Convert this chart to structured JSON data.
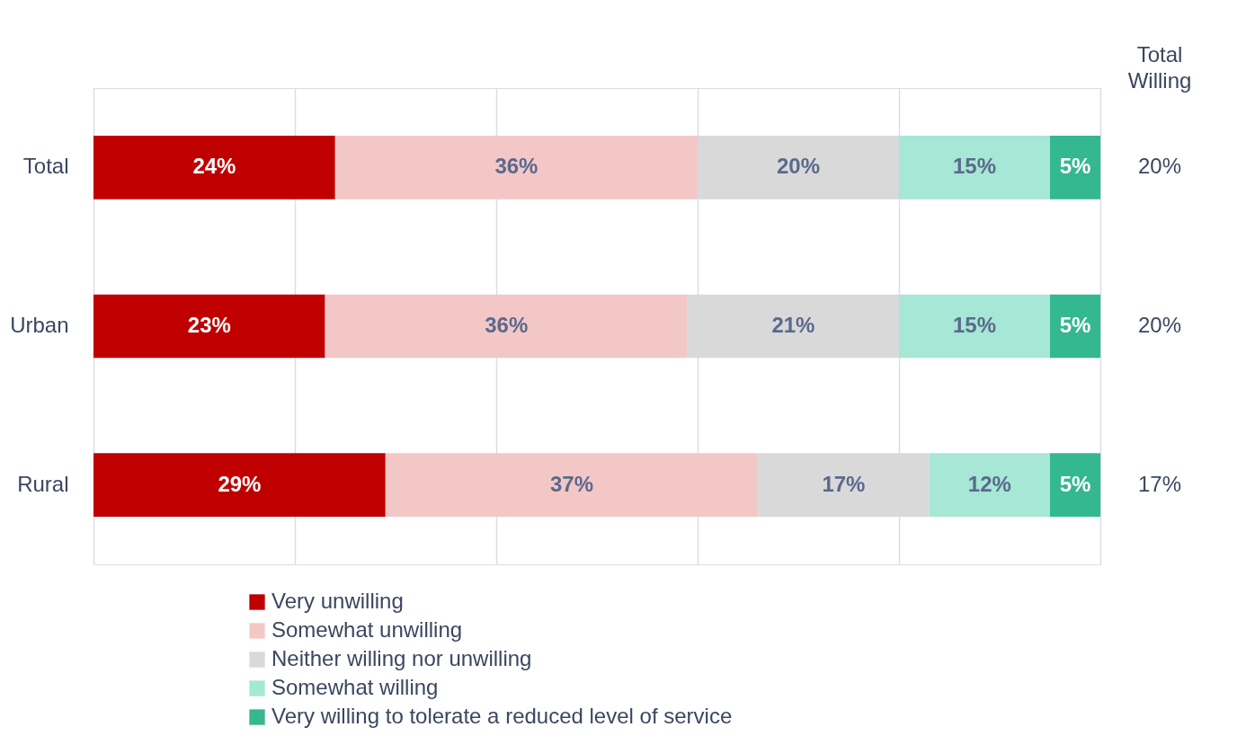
{
  "chart_data": {
    "type": "bar",
    "orientation": "horizontal",
    "stacked": true,
    "categories": [
      "Total",
      "Urban",
      "Rural"
    ],
    "series": [
      {
        "name": "Very unwilling",
        "color": "#c00000",
        "values": [
          24,
          23,
          29
        ],
        "value_labels": [
          "24%",
          "23%",
          "29%"
        ]
      },
      {
        "name": "Somewhat unwilling",
        "color": "#f4c7c7",
        "values": [
          36,
          36,
          37
        ],
        "value_labels": [
          "36%",
          "36%",
          "37%"
        ]
      },
      {
        "name": "Neither willing nor unwilling",
        "color": "#d9d9d9",
        "values": [
          20,
          21,
          17
        ],
        "value_labels": [
          "20%",
          "21%",
          "17%"
        ]
      },
      {
        "name": "Somewhat willing",
        "color": "#a6e7d5",
        "values": [
          15,
          15,
          12
        ],
        "value_labels": [
          "15%",
          "15%",
          "12%"
        ]
      },
      {
        "name": "Very willing to tolerate a reduced level of service",
        "color": "#33b88f",
        "values": [
          5,
          5,
          5
        ],
        "value_labels": [
          "5%",
          "5%",
          "5%"
        ]
      }
    ],
    "tick_labels": "y",
    "grid": "x",
    "legend": "bottom",
    "annotations": [
      "Total Willing",
      "20%",
      "20%",
      "17%"
    ]
  }
}
